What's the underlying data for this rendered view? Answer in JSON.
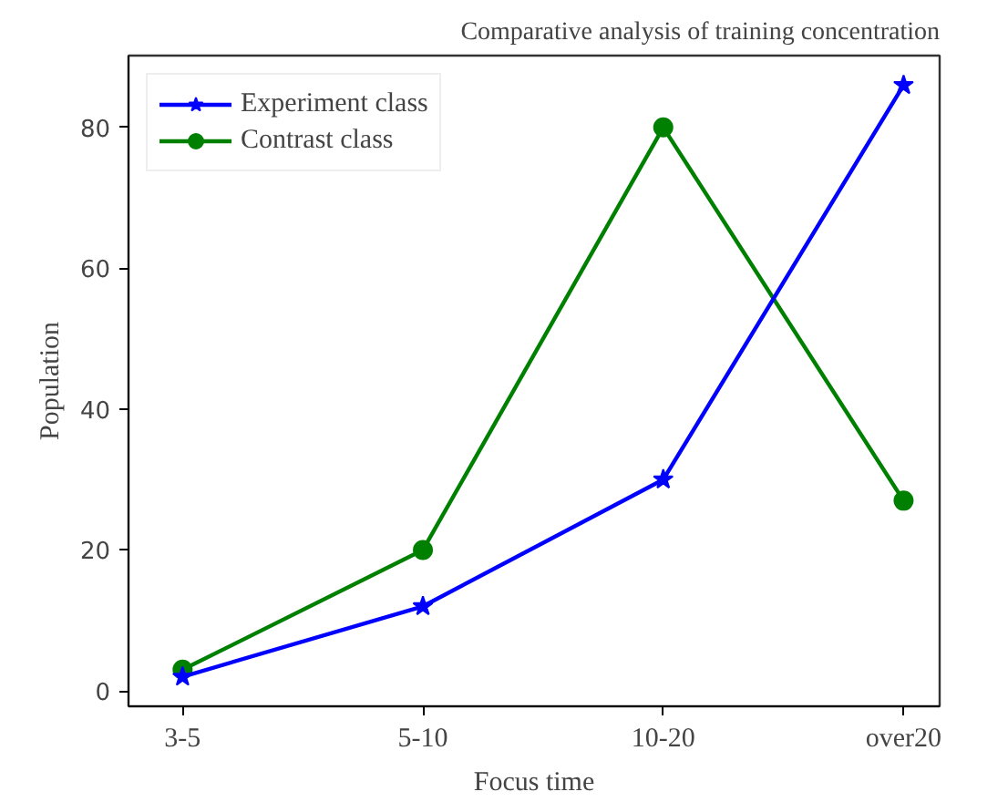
{
  "chart_data": {
    "type": "line",
    "title": "Comparative analysis of training concentration",
    "xlabel": "Focus time",
    "ylabel": "Population",
    "categories": [
      "3-5",
      "5-10",
      "10-20",
      "over20"
    ],
    "series": [
      {
        "name": "Experiment class",
        "color": "#0000ff",
        "marker": "star",
        "values": [
          2,
          12,
          30,
          86
        ]
      },
      {
        "name": "Contrast class",
        "color": "#008000",
        "marker": "circle",
        "values": [
          3,
          20,
          80,
          27
        ]
      }
    ],
    "ylim": [
      -2.2,
      90.2
    ],
    "yticks": [
      0,
      20,
      40,
      60,
      80
    ],
    "grid": false,
    "legend": "top left",
    "line_style": "solid"
  }
}
